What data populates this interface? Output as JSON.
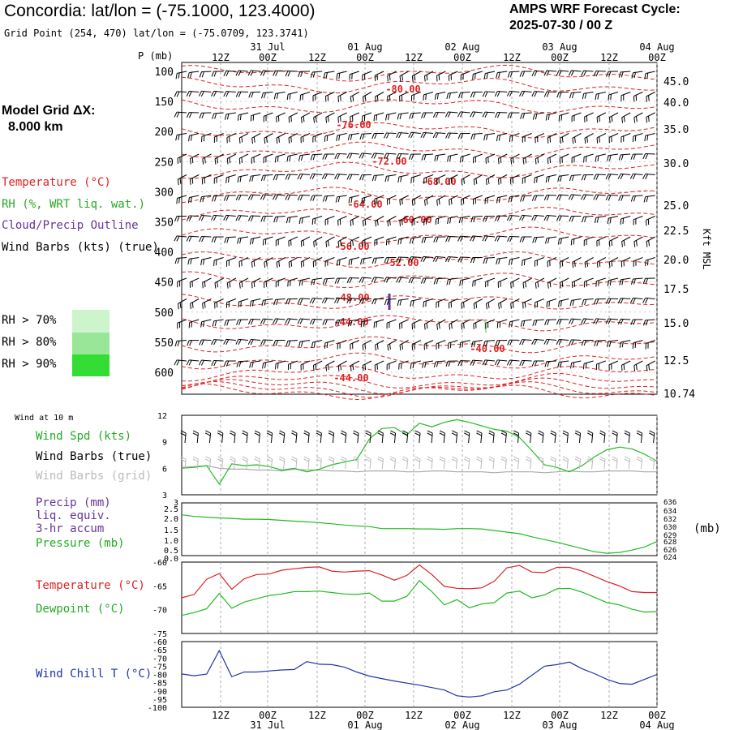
{
  "header": {
    "title": "Concordia:  lat/lon = (-75.1000, 123.4000)",
    "subtitle": "Grid Point (254, 470) lat/lon = (-75.0709, 123.3741)",
    "cycle_label": "AMPS WRF Forecast Cycle:",
    "cycle_value": "2025-07-30 / 00  Z",
    "grid_label": "Model Grid ΔX:",
    "grid_value": "8.000 km"
  },
  "legend": {
    "temperature": "Temperature (°C)",
    "rh": "RH (%, WRT liq. wat.)",
    "cloud": "Cloud/Precip Outline",
    "wind": "Wind Barbs (kts) (true)",
    "rh70": "RH > 70%",
    "rh80": "RH > 80%",
    "rh90": "RH > 90%",
    "colors": {
      "temperature": "#dd2222",
      "rh": "#22aa22",
      "cloud": "#663399",
      "rh70": "#ccf5cc",
      "rh80": "#99e699",
      "rh90": "#33dd33"
    }
  },
  "panel_labels": {
    "p_axis": "P (mb)",
    "kft": "Kft MSL",
    "wind10": "Wind at 10 m",
    "wind_spd": "Wind Spd (kts)",
    "wind_barbs_true": "Wind Barbs (true)",
    "wind_barbs_grid": "Wind Barbs (grid)",
    "precip1": "Precip (mm)",
    "precip2": "liq. equiv.",
    "precip3": "3-hr accum",
    "pressure": "Pressure (mb)",
    "pressure_unit": "(mb)",
    "temp": "Temperature (°C)",
    "dew": "Dewpoint (°C)",
    "windchill": "Wind Chill T (°C)"
  },
  "chart_data": [
    {
      "type": "line",
      "panel": "cross-section",
      "time_ticks": [
        "12Z",
        "00Z",
        "12Z",
        "00Z",
        "12Z",
        "00Z",
        "12Z",
        "00Z",
        "12Z",
        "00Z"
      ],
      "date_labels": [
        {
          "at": 1,
          "label": "31 Jul"
        },
        {
          "at": 3,
          "label": "01 Aug"
        },
        {
          "at": 5,
          "label": "02 Aug"
        },
        {
          "at": 7,
          "label": "03 Aug"
        },
        {
          "at": 9,
          "label": "04 Aug"
        }
      ],
      "pressure_ticks": [
        "100",
        "150",
        "200",
        "250",
        "300",
        "350",
        "400",
        "450",
        "500",
        "550",
        "600"
      ],
      "height_ticks": [
        "45.0",
        "40.0",
        "35.0",
        "30.0",
        "25.0",
        "22.5",
        "20.0",
        "17.5",
        "15.0",
        "12.5",
        "10.74"
      ],
      "isotherm_labels": [
        "-80.00",
        "-76.00",
        "-72.00",
        "-68.00",
        "-64.00",
        "-60.00",
        "-56.00",
        "-52.00",
        "-48.00",
        "-44.00",
        "-40.00",
        "-44.00"
      ]
    },
    {
      "type": "line",
      "panel": "wind-10m",
      "y_ticks": [
        "12",
        "9",
        "6",
        "3"
      ],
      "ylim": [
        3,
        12
      ],
      "series": [
        {
          "name": "Wind Spd (kts)",
          "color": "#22bb22",
          "values": [
            6,
            6.1,
            6.3,
            4.2,
            6.5,
            6.3,
            6.4,
            6.2,
            5.8,
            6.0,
            5.6,
            5.9,
            6.4,
            6.7,
            7.0,
            9.3,
            10.5,
            10.6,
            9.8,
            11.1,
            10.7,
            11.2,
            11.5,
            11.2,
            10.8,
            10.4,
            10.2,
            9.5,
            8.0,
            6.4,
            6.1,
            5.6,
            6.3,
            7.3,
            8.1,
            8.4,
            8.2,
            7.6,
            6.8
          ]
        },
        {
          "name": "Wind Barbs (grid)",
          "color": "#aaaaaa",
          "values": [
            6.1,
            6.2,
            6.3,
            6.0,
            5.9,
            5.9,
            5.8,
            5.8,
            5.7,
            5.9,
            5.8,
            5.8,
            5.7,
            5.7,
            5.6,
            5.7,
            5.7,
            5.7,
            5.6,
            5.6,
            5.7,
            5.7,
            5.6,
            5.6,
            5.6,
            5.5,
            5.6,
            5.6,
            5.6,
            5.5,
            5.6,
            5.7,
            5.6,
            5.6,
            5.7,
            5.7,
            5.7,
            5.6,
            5.6
          ]
        }
      ]
    },
    {
      "type": "line",
      "panel": "precip-pressure",
      "y_ticks_left": [
        "3",
        "2.5",
        "2.0",
        "1.5",
        "1.0",
        "0.5",
        "0.0"
      ],
      "y_ticks_right": [
        "636",
        "634",
        "632",
        "630",
        "629",
        "628",
        "626",
        "624"
      ],
      "ylim_right": [
        624,
        636
      ],
      "series": [
        {
          "name": "Pressure (mb)",
          "color": "#22bb22",
          "values": [
            634.4,
            634.0,
            633.8,
            633.6,
            633.5,
            633.3,
            633.3,
            633.2,
            633.0,
            632.8,
            632.6,
            632.4,
            632.1,
            631.8,
            631.6,
            631.4,
            630.9,
            630.9,
            630.9,
            630.8,
            630.8,
            630.7,
            630.9,
            630.9,
            630.8,
            630.4,
            630.0,
            629.6,
            628.8,
            628.1,
            627.4,
            626.6,
            625.8,
            625.0,
            624.6,
            624.8,
            625.4,
            626.2,
            627.6
          ]
        }
      ]
    },
    {
      "type": "line",
      "panel": "temperature",
      "y_ticks": [
        "-60",
        "-65",
        "-70",
        "-75"
      ],
      "ylim": [
        -75,
        -60
      ],
      "series": [
        {
          "name": "Temperature (°C)",
          "color": "#dd2222",
          "values": [
            -67.5,
            -66.8,
            -63.6,
            -62.4,
            -65.7,
            -63.5,
            -62.6,
            -62.5,
            -61.7,
            -61.4,
            -61.1,
            -61.0,
            -61.9,
            -62.1,
            -61.9,
            -61.8,
            -62.7,
            -63.8,
            -62.8,
            -60.6,
            -62.6,
            -65.1,
            -65.5,
            -65.6,
            -65.4,
            -64.0,
            -61.2,
            -60.7,
            -62.1,
            -62.2,
            -61.1,
            -61.1,
            -61.9,
            -63.0,
            -64.1,
            -65.0,
            -66.2,
            -66.4,
            -66.4
          ]
        },
        {
          "name": "Dewpoint (°C)",
          "color": "#22bb22",
          "values": [
            -71.2,
            -70.6,
            -69.8,
            -66.6,
            -69.7,
            -68.4,
            -67.7,
            -67.0,
            -66.7,
            -66.2,
            -66.2,
            -66.1,
            -66.4,
            -66.7,
            -66.8,
            -66.5,
            -68.2,
            -68.2,
            -67.2,
            -63.9,
            -66.2,
            -69.0,
            -67.9,
            -69.6,
            -68.8,
            -68.5,
            -66.5,
            -66.1,
            -67.5,
            -66.9,
            -65.6,
            -65.5,
            -66.3,
            -67.4,
            -68.5,
            -69.0,
            -69.9,
            -70.5,
            -70.4
          ]
        }
      ]
    },
    {
      "type": "line",
      "panel": "wind-chill",
      "y_ticks": [
        "-60",
        "-65",
        "-70",
        "-75",
        "-80",
        "-85",
        "-90",
        "-95",
        "-100"
      ],
      "ylim": [
        -100,
        -60
      ],
      "series": [
        {
          "name": "Wind Chill T (°C)",
          "color": "#2233aa",
          "values": [
            -79.7,
            -80.8,
            -79.8,
            -65.5,
            -81.4,
            -78.5,
            -78.5,
            -77.9,
            -77.3,
            -77.0,
            -72.2,
            -73.8,
            -74.0,
            -75.5,
            -78.5,
            -81.0,
            -82.5,
            -84.0,
            -85.3,
            -86.5,
            -88.0,
            -89.5,
            -93.0,
            -93.8,
            -93.0,
            -90.5,
            -89.5,
            -86.0,
            -80.5,
            -75.0,
            -74.0,
            -72.5,
            -76.5,
            -79.5,
            -83.0,
            -85.5,
            -86.0,
            -83.0,
            -80.0
          ]
        }
      ]
    }
  ]
}
